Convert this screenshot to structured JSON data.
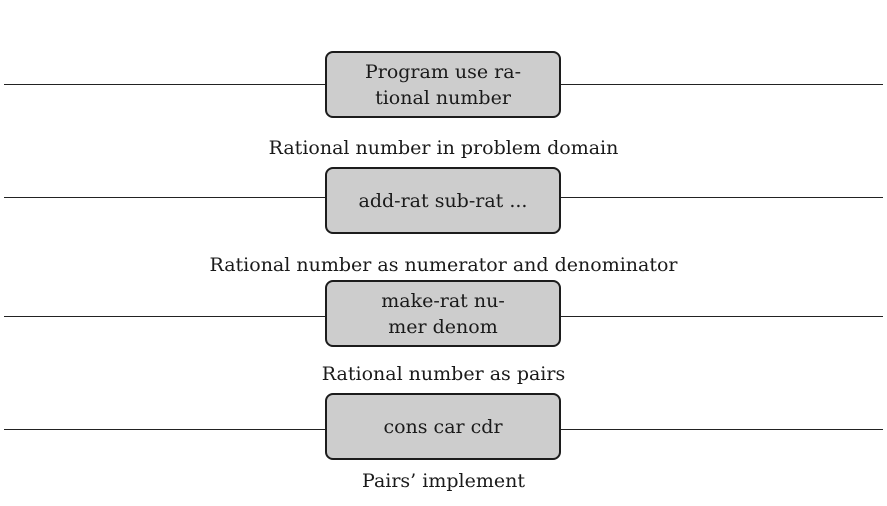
{
  "layers": [
    {
      "box_lines": [
        "Program use ra-",
        "tional number"
      ],
      "caption": "Rational number in problem domain"
    },
    {
      "box_lines": [
        "add-rat sub-rat ..."
      ],
      "caption": "Rational number as numerator and denominator"
    },
    {
      "box_lines": [
        "make-rat nu-",
        "mer denom"
      ],
      "caption": "Rational number as pairs"
    },
    {
      "box_lines": [
        "cons car cdr"
      ],
      "caption": "Pairs’ implement"
    }
  ]
}
